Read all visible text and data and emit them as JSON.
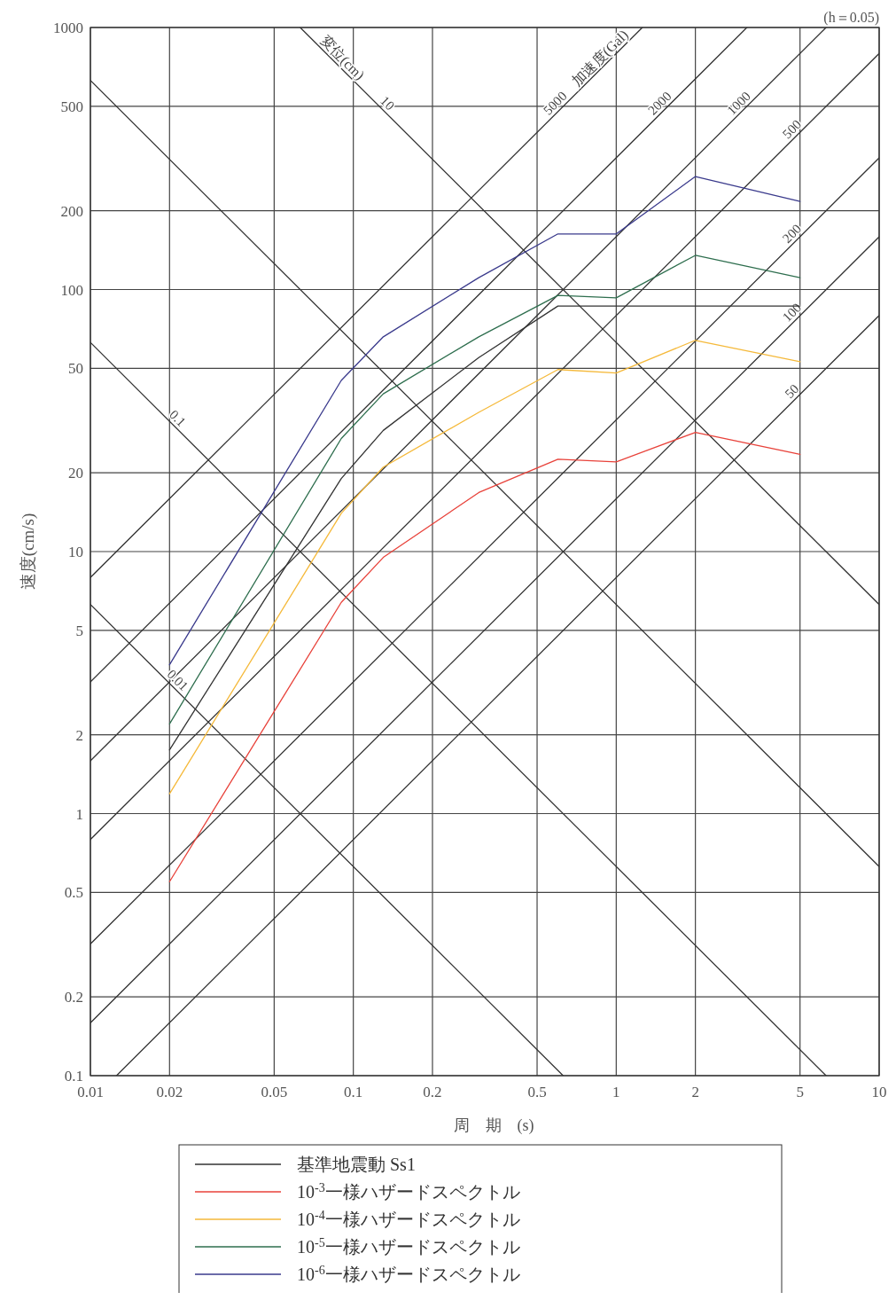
{
  "chart_data": {
    "type": "line",
    "xlabel": "周　期　(s)",
    "ylabel": "速度(cm/s)",
    "log": "xy",
    "grid": true,
    "legend": "bottom",
    "xlim": [
      0.01,
      10
    ],
    "xticks": [
      0.01,
      0.02,
      0.05,
      0.1,
      0.2,
      0.5,
      1,
      2,
      5,
      10
    ],
    "ylim": [
      0.1,
      1000
    ],
    "yticks": [
      0.1,
      0.2,
      0.5,
      1,
      2,
      5,
      10,
      20,
      50,
      100,
      200,
      500,
      1000
    ],
    "x": [
      0.02,
      0.09,
      0.13,
      0.3,
      0.6,
      1,
      2,
      5
    ],
    "annotations": [
      "(h＝0.05)",
      "変位(cm)",
      "加速度(Gal)"
    ],
    "series": [
      {
        "name": "基準地震動 Ss1",
        "color": "#333333",
        "values": [
          1.75,
          19,
          29,
          55,
          86.5,
          86.5,
          86.5,
          86.5
        ]
      },
      {
        "name": "10$^{-3}$一様ハザードスペクトル",
        "color": "#e8423a",
        "values": [
          0.55,
          6.4,
          9.5,
          16.8,
          22.5,
          22,
          28.5,
          23.5
        ]
      },
      {
        "name": "10$^{-4}$一様ハザードスペクトル",
        "color": "#f5b93a",
        "values": [
          1.19,
          14,
          21,
          34,
          49.5,
          48,
          64,
          53
        ]
      },
      {
        "name": "10$^{-5}$一様ハザードスペクトル",
        "color": "#2e6e4e",
        "values": [
          2.2,
          27,
          40,
          66,
          95,
          93,
          135,
          111
        ]
      },
      {
        "name": "10$^{-6}$一様ハザードスペクトル",
        "color": "#3a3a8c",
        "values": [
          3.7,
          45,
          66,
          111,
          163,
          163,
          270,
          217
        ]
      },
      {
        "name": "10",
        "color": "#333333",
        "x": [
          0.0628,
          10
        ],
        "values": [
          1000,
          6.28
        ]
      },
      {
        "name": null,
        "color": "#333333",
        "x": [
          0.01,
          10
        ],
        "values": [
          628,
          0.628
        ]
      },
      {
        "name": "0.1",
        "color": "#333333",
        "x": [
          0.01,
          6.28
        ],
        "values": [
          62.8,
          0.1
        ]
      },
      {
        "name": "0.01",
        "color": "#333333",
        "x": [
          0.01,
          0.628
        ],
        "values": [
          6.28,
          0.1
        ]
      },
      {
        "name": "5000",
        "color": "#333333",
        "x": [
          0.01,
          1.257
        ],
        "values": [
          7.96,
          1000
        ]
      },
      {
        "name": "2000",
        "color": "#333333",
        "x": [
          0.01,
          3.14
        ],
        "values": [
          3.18,
          1000
        ]
      },
      {
        "name": "1000",
        "color": "#333333",
        "x": [
          0.01,
          6.28
        ],
        "values": [
          1.59,
          1000
        ]
      },
      {
        "name": "500",
        "color": "#333333",
        "x": [
          0.01,
          10
        ],
        "values": [
          0.796,
          796
        ]
      },
      {
        "name": "200",
        "color": "#333333",
        "x": [
          0.01,
          10
        ],
        "values": [
          0.318,
          318
        ]
      },
      {
        "name": "100",
        "color": "#333333",
        "x": [
          0.01,
          10
        ],
        "values": [
          0.159,
          159
        ]
      },
      {
        "name": "50",
        "color": "#333333",
        "x": [
          0.01257,
          10
        ],
        "values": [
          0.1,
          79.6
        ]
      }
    ]
  }
}
